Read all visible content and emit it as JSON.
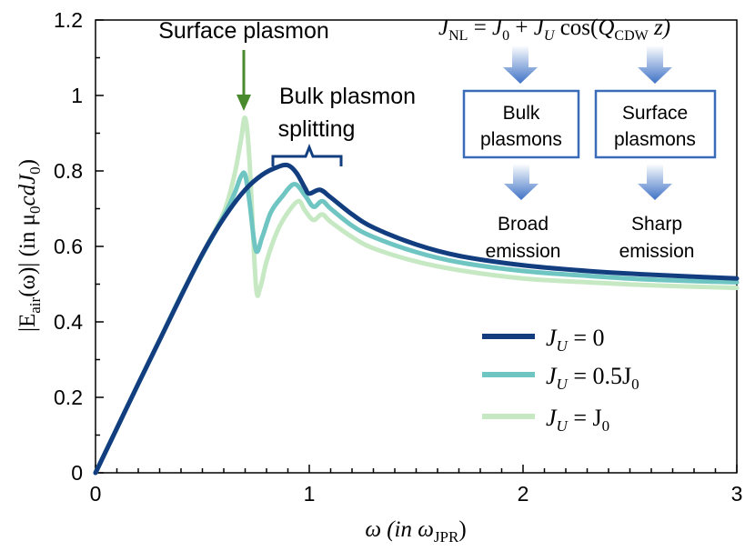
{
  "chart_data": {
    "type": "line",
    "xlabel": "ω (in ω_JPR)",
    "xlabel_parts": {
      "main": "ω (in ω",
      "sub": "JPR",
      "close": ")"
    },
    "ylabel": "|E_air(ω)| (in μ0 c d J0)",
    "ylabel_parts": {
      "pre": "|E",
      "sub1": "air",
      "mid": "(ω)| (in μ",
      "sub2": "0",
      "mid2": "cdJ",
      "sub3": "0",
      "close": ")"
    },
    "xlim": [
      0,
      3
    ],
    "ylim": [
      0,
      1.2
    ],
    "xticks": [
      0,
      1,
      2,
      3
    ],
    "xtick_labels": [
      "0",
      "1",
      "2",
      "3"
    ],
    "yticks": [
      0,
      0.2,
      0.4,
      0.6,
      0.8,
      1.0,
      1.2
    ],
    "ytick_labels": [
      "0",
      "0.2",
      "0.4",
      "0.6",
      "0.8",
      "1",
      "1.2"
    ],
    "grid": false,
    "legend_position": "center-right",
    "series": [
      {
        "name": "J_U = 0",
        "label_parts": {
          "var": "J",
          "sub": "U",
          "rest": " = 0"
        },
        "color": "#123e80",
        "x": [
          0,
          0.1,
          0.2,
          0.3,
          0.4,
          0.5,
          0.6,
          0.7,
          0.78,
          0.85,
          0.9,
          0.94,
          0.98,
          1.0,
          1.05,
          1.1,
          1.2,
          1.3,
          1.5,
          1.7,
          2.0,
          2.3,
          2.6,
          3.0
        ],
        "y": [
          0,
          0.118,
          0.236,
          0.352,
          0.468,
          0.58,
          0.675,
          0.75,
          0.79,
          0.81,
          0.815,
          0.795,
          0.755,
          0.74,
          0.75,
          0.73,
          0.685,
          0.65,
          0.605,
          0.575,
          0.55,
          0.535,
          0.525,
          0.515
        ]
      },
      {
        "name": "J_U = 0.5J_0",
        "label_parts": {
          "var": "J",
          "sub": "U",
          "rest": " = 0.5J",
          "sub2": "0"
        },
        "color": "#6fc5c2",
        "x": [
          0,
          0.1,
          0.2,
          0.3,
          0.4,
          0.5,
          0.6,
          0.65,
          0.68,
          0.7,
          0.72,
          0.75,
          0.78,
          0.82,
          0.87,
          0.93,
          0.98,
          1.02,
          1.06,
          1.1,
          1.2,
          1.3,
          1.5,
          1.7,
          2.0,
          2.3,
          2.6,
          3.0
        ],
        "y": [
          0,
          0.118,
          0.236,
          0.352,
          0.47,
          0.578,
          0.68,
          0.74,
          0.785,
          0.79,
          0.72,
          0.59,
          0.625,
          0.69,
          0.73,
          0.765,
          0.735,
          0.705,
          0.72,
          0.7,
          0.655,
          0.625,
          0.585,
          0.558,
          0.535,
          0.522,
          0.512,
          0.505
        ]
      },
      {
        "name": "J_U = J_0",
        "label_parts": {
          "var": "J",
          "sub": "U",
          "rest": " = J",
          "sub2": "0"
        },
        "color": "#c6e9c4",
        "x": [
          0,
          0.1,
          0.2,
          0.3,
          0.4,
          0.5,
          0.6,
          0.65,
          0.68,
          0.7,
          0.72,
          0.75,
          0.77,
          0.8,
          0.85,
          0.9,
          0.95,
          0.98,
          1.02,
          1.06,
          1.1,
          1.2,
          1.3,
          1.5,
          1.7,
          2.0,
          2.3,
          2.6,
          3.0
        ],
        "y": [
          0,
          0.118,
          0.236,
          0.352,
          0.47,
          0.58,
          0.69,
          0.79,
          0.88,
          0.94,
          0.83,
          0.5,
          0.49,
          0.56,
          0.64,
          0.69,
          0.72,
          0.695,
          0.67,
          0.685,
          0.665,
          0.625,
          0.595,
          0.56,
          0.537,
          0.515,
          0.505,
          0.497,
          0.49
        ]
      }
    ],
    "annotations": {
      "surface_peak": "Surface plasmon",
      "bulk_split_line1": "Bulk plasmon",
      "bulk_split_line2": "splitting",
      "equation": {
        "lhs_var": "J",
        "lhs_sub": "NL",
        "eq": " = ",
        "j0": "J",
        "j0_sub": "0",
        "plus": " + ",
        "ju": "J",
        "ju_sub": "U",
        "cos": " cos(",
        "q": "Q",
        "q_sub": "CDW",
        "z": " z)"
      },
      "box_bulk_line1": "Bulk",
      "box_bulk_line2": "plasmons",
      "box_surface_line1": "Surface",
      "box_surface_line2": "plasmons",
      "broad_line1": "Broad",
      "broad_line2": "emission",
      "sharp_line1": "Sharp",
      "sharp_line2": "emission"
    },
    "arrow_color": "#4a8a2e",
    "box_color": "#3a6bb8",
    "block_arrow_color": "#4575c4"
  }
}
